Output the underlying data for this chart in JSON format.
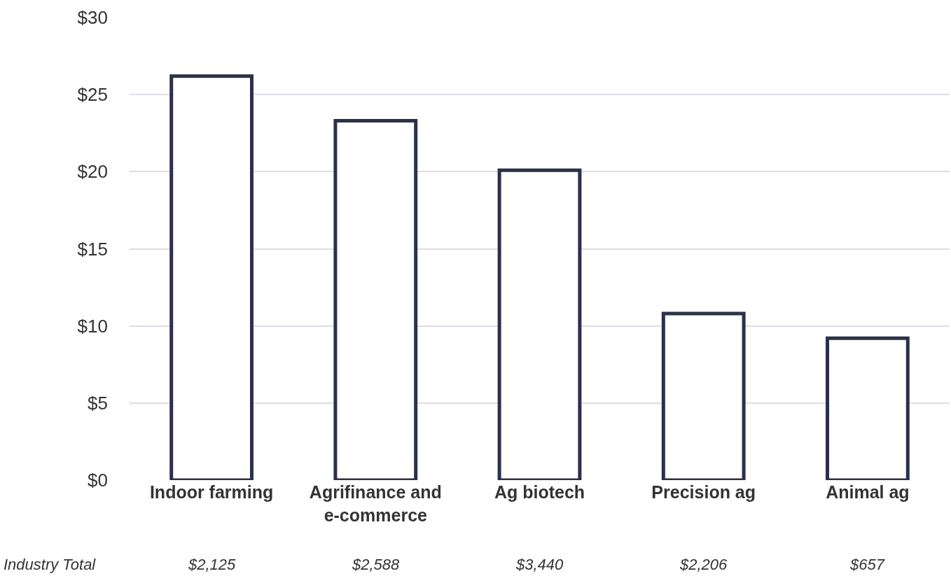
{
  "chart_data": {
    "type": "bar",
    "categories": [
      "Indoor farming",
      "Agrifinance and e-commerce",
      "Ag biotech",
      "Precision ag",
      "Animal ag"
    ],
    "values": [
      26.2,
      23.3,
      20.1,
      10.8,
      9.2
    ],
    "color": "#2b3147",
    "ylim": [
      0,
      30
    ],
    "yticks": [
      {
        "value": 0,
        "label": "$0"
      },
      {
        "value": 5,
        "label": "$5"
      },
      {
        "value": 10,
        "label": "$10"
      },
      {
        "value": 15,
        "label": "$15"
      },
      {
        "value": 20,
        "label": "$20"
      },
      {
        "value": 25,
        "label": "$25"
      },
      {
        "value": 30,
        "label": "$30"
      }
    ],
    "grid": "y",
    "annotations": [
      "Industry Total",
      "$2,125",
      "$2,588",
      "$3,440",
      "$2,206",
      "$657"
    ]
  }
}
